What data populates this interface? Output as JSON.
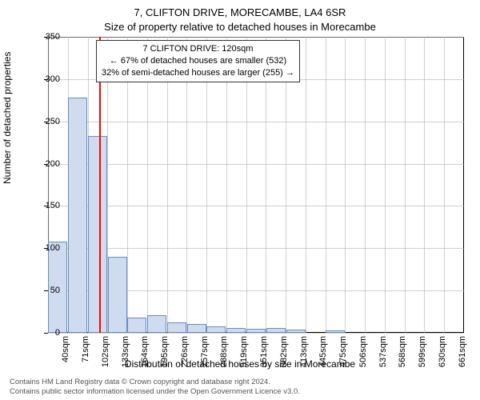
{
  "title_main": "7, CLIFTON DRIVE, MORECAMBE, LA4 6SR",
  "title_sub": "Size of property relative to detached houses in Morecambe",
  "ylabel": "Number of detached properties",
  "xlabel": "Distribution of detached houses by size in Morecambe",
  "chart": {
    "type": "bar",
    "background_color": "#ffffff",
    "grid_color": "#b0b0b0",
    "bar_fill": "#cfdcef",
    "bar_border": "#6a8bc0",
    "marker_color": "#ff0000",
    "ylim": [
      0,
      350
    ],
    "ytick_step": 50,
    "yticks": [
      0,
      50,
      100,
      150,
      200,
      250,
      300,
      350
    ],
    "xticks": [
      "40sqm",
      "71sqm",
      "102sqm",
      "133sqm",
      "164sqm",
      "195sqm",
      "226sqm",
      "257sqm",
      "288sqm",
      "319sqm",
      "351sqm",
      "382sqm",
      "413sqm",
      "445sqm",
      "475sqm",
      "506sqm",
      "537sqm",
      "568sqm",
      "599sqm",
      "630sqm",
      "661sqm"
    ],
    "values": [
      108,
      278,
      233,
      90,
      18,
      21,
      12,
      10,
      8,
      6,
      5,
      6,
      4,
      0,
      3,
      0,
      0,
      0,
      0,
      0,
      0
    ],
    "marker_index": 2.58,
    "bar_width_ratio": 0.97,
    "annotation": {
      "lines": [
        "7 CLIFTON DRIVE: 120sqm",
        "← 67% of detached houses are smaller (532)",
        "32% of semi-detached houses are larger (255) →"
      ],
      "border_color": "#333333",
      "font_size": 11
    }
  },
  "credits": {
    "line1": "Contains HM Land Registry data © Crown copyright and database right 2024.",
    "line2": "Contains public sector information licensed under the Open Government Licence v3.0."
  }
}
